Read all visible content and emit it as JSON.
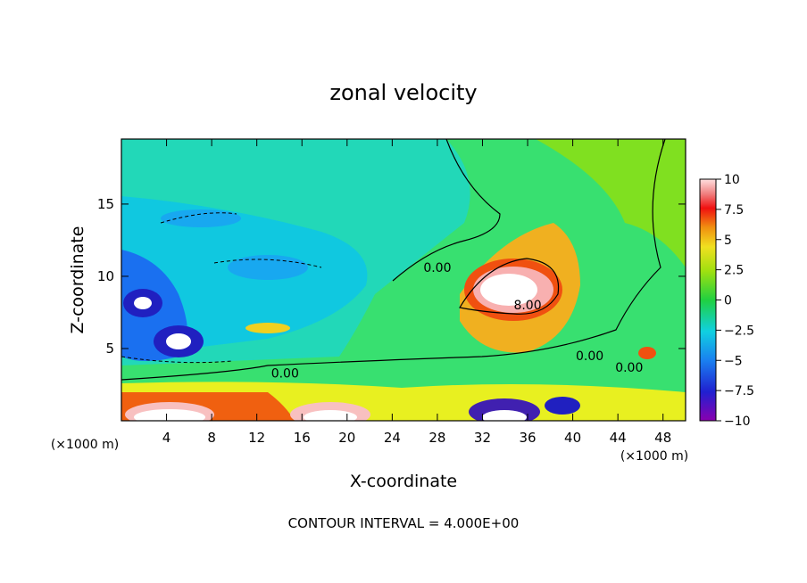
{
  "chart_data": {
    "type": "heatmap",
    "title": "zonal velocity",
    "xlabel": "X-coordinate",
    "ylabel": "Z-coordinate",
    "x_unit_label": "(×1000 m)",
    "x_ticks": [
      4,
      8,
      12,
      16,
      20,
      24,
      28,
      32,
      36,
      40,
      44,
      48
    ],
    "y_ticks": [
      5,
      10,
      15
    ],
    "xlim": [
      0,
      50
    ],
    "ylim": [
      0,
      19.5
    ],
    "colorbar": {
      "ticks": [
        10,
        7.5,
        5,
        2.5,
        0,
        -2.5,
        -5,
        -7.5,
        -10
      ],
      "tick_labels": [
        "10",
        "7.5",
        "5",
        "2.5",
        "0",
        "−2.5",
        "−5",
        "−7.5",
        "−10"
      ],
      "range": [
        -10,
        10
      ]
    },
    "contour_labels": [
      {
        "text": "0.00",
        "x": 28,
        "y": 10.3
      },
      {
        "text": "8.00",
        "x": 36,
        "y": 7.7
      },
      {
        "text": "0.00",
        "x": 14.5,
        "y": 3.0
      },
      {
        "text": "0.00",
        "x": 41.5,
        "y": 4.2
      },
      {
        "text": "0.00",
        "x": 45,
        "y": 3.4
      }
    ],
    "contour_interval_text": "CONTOUR INTERVAL = 4.000E+00",
    "grid": false,
    "legend": "colorbar-right"
  }
}
